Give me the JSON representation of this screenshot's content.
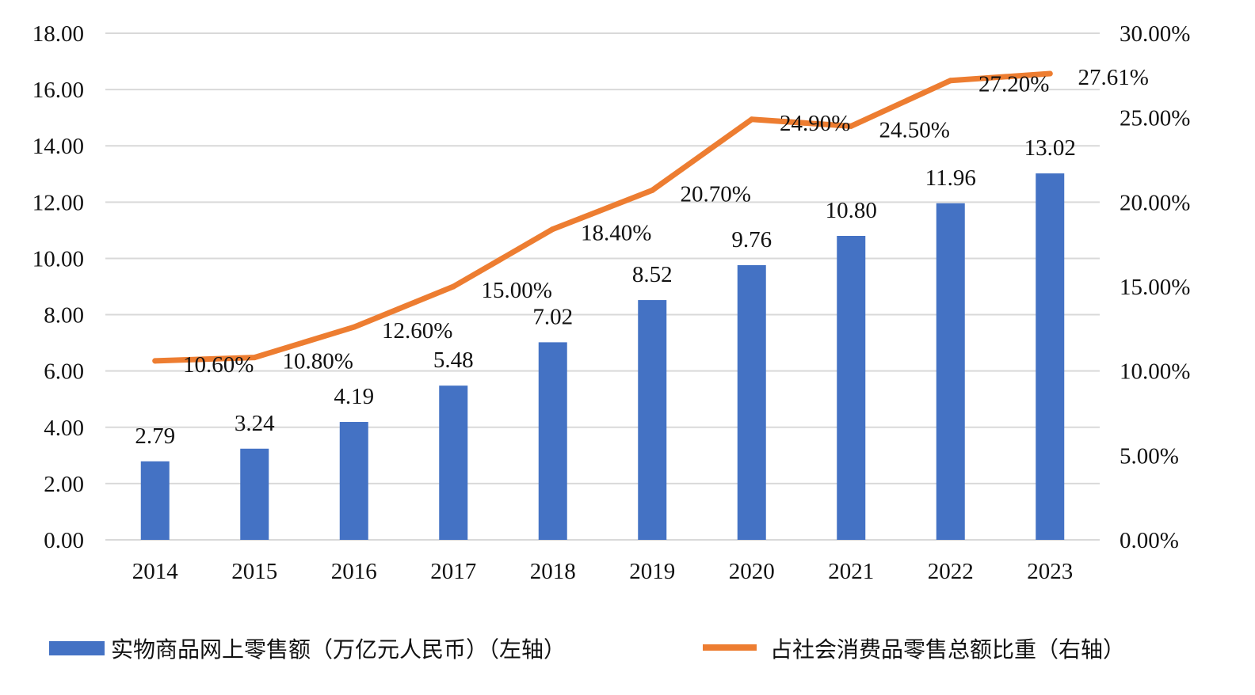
{
  "chart_data": {
    "type": "bar",
    "categories": [
      "2014",
      "2015",
      "2016",
      "2017",
      "2018",
      "2019",
      "2020",
      "2021",
      "2022",
      "2023"
    ],
    "series": [
      {
        "name": "实物商品网上零售额（万亿元人民币）（左轴）",
        "type": "bar",
        "axis": "left",
        "color": "#4472C4",
        "values": [
          2.79,
          3.24,
          4.19,
          5.48,
          7.02,
          8.52,
          9.76,
          10.8,
          11.96,
          13.02
        ],
        "labels": [
          "2.79",
          "3.24",
          "4.19",
          "5.48",
          "7.02",
          "8.52",
          "9.76",
          "10.80",
          "11.96",
          "13.02"
        ]
      },
      {
        "name": "占社会消费品零售总额比重（右轴）",
        "type": "line",
        "axis": "right",
        "color": "#ED7D31",
        "values": [
          10.6,
          10.8,
          12.6,
          15.0,
          18.4,
          20.7,
          24.9,
          24.5,
          27.2,
          27.61
        ],
        "labels": [
          "10.60%",
          "10.80%",
          "12.60%",
          "15.00%",
          "18.40%",
          "20.70%",
          "24.90%",
          "24.50%",
          "27.20%",
          "27.61%"
        ]
      }
    ],
    "y_left": {
      "range": [
        0,
        18
      ],
      "ticks": [
        0,
        2,
        4,
        6,
        8,
        10,
        12,
        14,
        16,
        18
      ],
      "tick_labels": [
        "0.00",
        "2.00",
        "4.00",
        "6.00",
        "8.00",
        "10.00",
        "12.00",
        "14.00",
        "16.00",
        "18.00"
      ]
    },
    "y_right": {
      "range": [
        0,
        30
      ],
      "ticks": [
        0,
        5,
        10,
        15,
        20,
        25,
        30
      ],
      "tick_labels": [
        "0.00%",
        "5.00%",
        "10.00%",
        "15.00%",
        "20.00%",
        "25.00%",
        "30.00%"
      ]
    },
    "grid": true,
    "legend_position": "bottom"
  }
}
